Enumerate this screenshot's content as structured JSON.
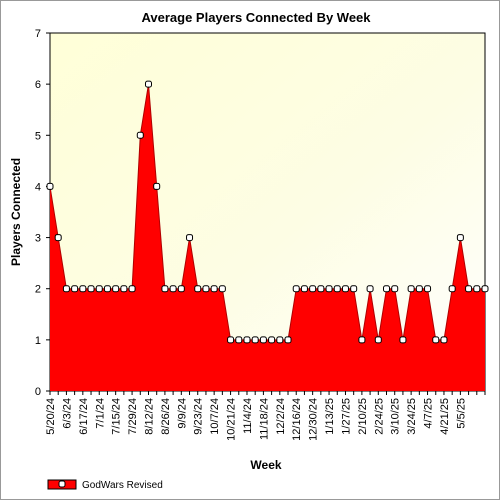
{
  "chart_data": {
    "type": "area",
    "title": "Average Players Connected By Week",
    "xlabel": "Week",
    "ylabel": "Players Connected",
    "ylim": [
      0,
      7
    ],
    "yticks": [
      "0",
      "1",
      "2",
      "3",
      "4",
      "5",
      "6",
      "7"
    ],
    "xtick_labels": [
      "5/20/24",
      "6/3/24",
      "6/17/24",
      "7/1/24",
      "7/15/24",
      "7/29/24",
      "8/12/24",
      "8/26/24",
      "9/9/24",
      "9/23/24",
      "10/7/24",
      "10/21/24",
      "11/4/24",
      "11/18/24",
      "12/2/24",
      "12/16/24",
      "12/30/24",
      "1/13/25",
      "1/27/25",
      "2/10/25",
      "2/24/25",
      "3/10/25",
      "3/24/25",
      "4/7/25",
      "4/21/25",
      "5/5/25"
    ],
    "grid": false,
    "legend_position": "bottom-left",
    "series": [
      {
        "name": "GodWars Revised",
        "color": "#ff0000",
        "values": [
          4,
          3,
          2,
          2,
          2,
          2,
          2,
          2,
          2,
          2,
          2,
          5,
          6,
          4,
          2,
          2,
          2,
          3,
          2,
          2,
          2,
          2,
          1,
          1,
          1,
          1,
          1,
          1,
          1,
          1,
          2,
          2,
          2,
          2,
          2,
          2,
          2,
          2,
          1,
          2,
          1,
          2,
          2,
          1,
          2,
          2,
          2,
          1,
          1,
          2,
          3,
          2,
          2,
          2
        ]
      }
    ]
  }
}
